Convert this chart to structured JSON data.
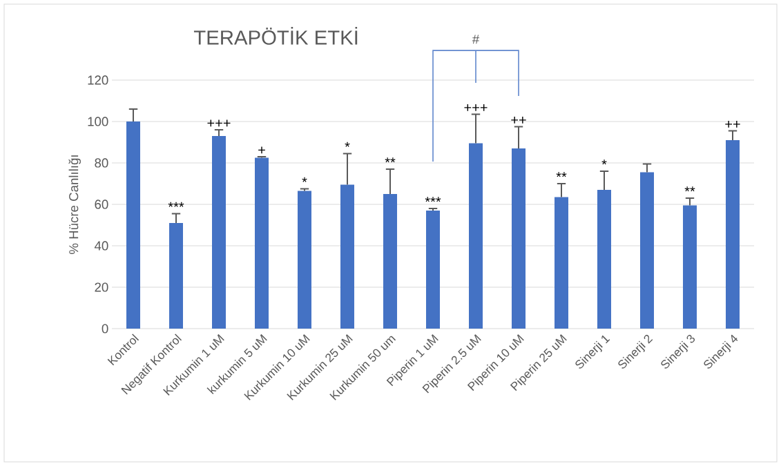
{
  "chart_data": {
    "type": "bar",
    "title": "TERAPÖTİK ETKİ",
    "ylabel": "% Hücre Canlılığı",
    "categories": [
      "Kontrol",
      "Negatif Kontrol",
      "Kurkumin 1 uM",
      "kurkumin 5 uM",
      "Kurkumin 10 uM",
      "Kurkumin 25 uM",
      "Kurkumin 50 um",
      "Piperin 1 uM",
      "Piperin 2.5 uM",
      "Piperin 10 uM",
      "Piperin 25 uM",
      "Sinerji 1",
      "Sinerji 2",
      "Sinerji 3",
      "Sinerji 4"
    ],
    "values": [
      100,
      51,
      93,
      82.5,
      66.5,
      69.5,
      65,
      57,
      89.5,
      87,
      63.5,
      67,
      75.5,
      59.5,
      91
    ],
    "errors": [
      [
        100,
        106
      ],
      [
        51,
        55.5
      ],
      [
        93,
        96
      ],
      [
        82.5,
        83
      ],
      [
        66.5,
        67.5
      ],
      [
        69.5,
        84.5
      ],
      [
        65,
        77
      ],
      [
        57,
        58
      ],
      [
        89.5,
        103.5
      ],
      [
        87,
        97.5
      ],
      [
        63.5,
        70
      ],
      [
        67,
        76
      ],
      [
        75.5,
        79.5
      ],
      [
        59.5,
        63
      ],
      [
        91,
        95.5
      ]
    ],
    "value_labels": [
      null,
      "***",
      "+++",
      "+",
      "*",
      "*",
      "**",
      "***",
      "+++",
      "++",
      "**",
      "*",
      null,
      "**",
      "++"
    ],
    "color": "#4472c4",
    "ylim": [
      0,
      120
    ],
    "yticks": [
      0,
      20,
      40,
      60,
      80,
      100,
      120
    ],
    "grid": "y",
    "annotations": [
      "#"
    ]
  }
}
